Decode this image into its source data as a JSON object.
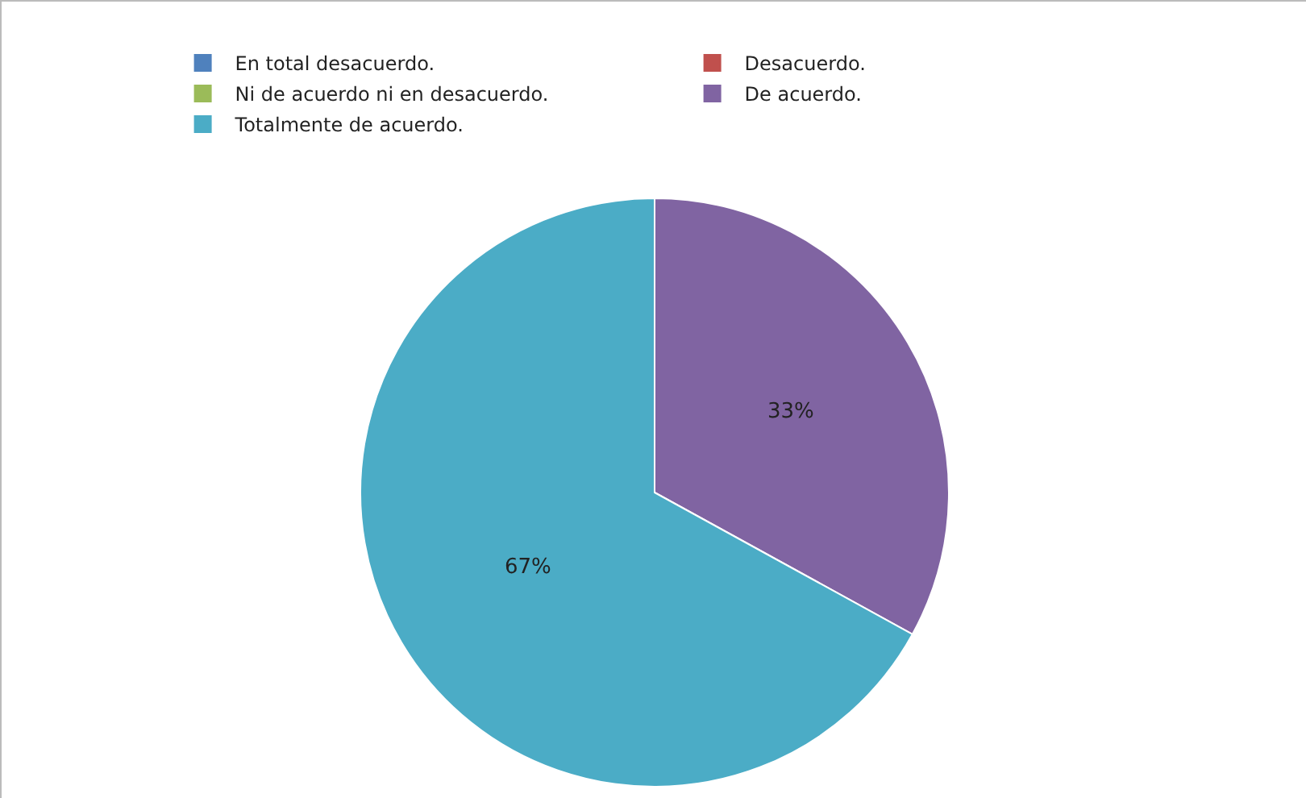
{
  "chart_data": {
    "type": "pie",
    "categories": [
      "En total desacuerdo.",
      "Desacuerdo.",
      "Ni de acuerdo ni en desacuerdo.",
      "De acuerdo.",
      "Totalmente de acuerdo."
    ],
    "values": [
      0,
      0,
      0,
      33,
      67
    ],
    "colors": [
      "#4f81bd",
      "#c0504d",
      "#9bbb59",
      "#8064a2",
      "#4bacc6"
    ],
    "value_labels": [
      null,
      null,
      null,
      "33%",
      "67%"
    ],
    "legend": "top"
  }
}
